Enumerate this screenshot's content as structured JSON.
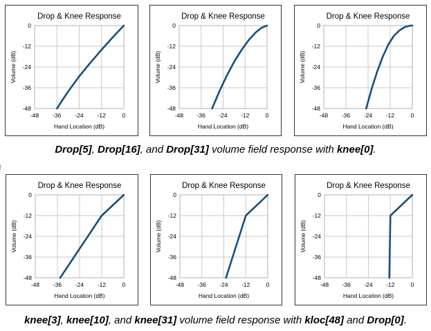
{
  "charts": [
    {
      "title": "Drop & Knee Response",
      "xlabel": "Hand Location (dB)",
      "ylabel": "Volume (dB)",
      "x_ticks": [
        "-48",
        "-36",
        "-24",
        "-12",
        "0"
      ],
      "y_ticks": [
        "0",
        "-12",
        "-24",
        "-36",
        "-48"
      ],
      "xlim": [
        -48,
        0
      ],
      "ylim": [
        -48,
        0
      ],
      "line_color": "#174f7c",
      "points": [
        [
          -36,
          -48
        ],
        [
          -30,
          -38.2
        ],
        [
          -24,
          -29.4
        ],
        [
          -18,
          -21.5
        ],
        [
          -12,
          -14
        ],
        [
          -6,
          -6.8
        ],
        [
          0,
          0
        ]
      ]
    },
    {
      "title": "Drop & Knee Response",
      "xlabel": "Hand Location (dB)",
      "ylabel": "Volume (dB)",
      "x_ticks": [
        "-48",
        "-36",
        "-24",
        "-12",
        "0"
      ],
      "y_ticks": [
        "0",
        "-12",
        "-24",
        "-36",
        "-48"
      ],
      "xlim": [
        -48,
        0
      ],
      "ylim": [
        -48,
        0
      ],
      "line_color": "#174f7c",
      "points": [
        [
          -30,
          -48
        ],
        [
          -26,
          -38
        ],
        [
          -22,
          -29
        ],
        [
          -18,
          -21
        ],
        [
          -14,
          -14.2
        ],
        [
          -10,
          -8.4
        ],
        [
          -6,
          -3.8
        ],
        [
          -3,
          -1.3
        ],
        [
          0,
          0
        ]
      ]
    },
    {
      "title": "Drop & Knee Response",
      "xlabel": "Hand Location (dB)",
      "ylabel": "Volume (dB)",
      "x_ticks": [
        "-48",
        "-36",
        "-24",
        "-12",
        "0"
      ],
      "y_ticks": [
        "0",
        "-12",
        "-24",
        "-36",
        "-48"
      ],
      "xlim": [
        -48,
        0
      ],
      "ylim": [
        -48,
        0
      ],
      "line_color": "#174f7c",
      "points": [
        [
          -25,
          -48
        ],
        [
          -22,
          -36.5
        ],
        [
          -19,
          -26.5
        ],
        [
          -16,
          -18
        ],
        [
          -13,
          -11
        ],
        [
          -10,
          -6
        ],
        [
          -7,
          -2.8
        ],
        [
          -4,
          -0.8
        ],
        [
          -1,
          0
        ],
        [
          0,
          0
        ]
      ]
    },
    {
      "title": "Drop & Knee Response",
      "xlabel": "Hand Location (dB)",
      "ylabel": "Volume (dB)",
      "x_ticks": [
        "-48",
        "-36",
        "-24",
        "-12",
        "0"
      ],
      "y_ticks": [
        "0",
        "-12",
        "-24",
        "-36",
        "-48"
      ],
      "xlim": [
        -48,
        0
      ],
      "ylim": [
        -48,
        0
      ],
      "line_color": "#174f7c",
      "points": [
        [
          -34.5,
          -48
        ],
        [
          -12,
          -12
        ],
        [
          0,
          0
        ]
      ]
    },
    {
      "title": "Drop & Knee Response",
      "xlabel": "Hand Location (dB)",
      "ylabel": "Volume (dB)",
      "x_ticks": [
        "-48",
        "-36",
        "-24",
        "-12",
        "0"
      ],
      "y_ticks": [
        "0",
        "-12",
        "-24",
        "-36",
        "-48"
      ],
      "xlim": [
        -48,
        0
      ],
      "ylim": [
        -48,
        0
      ],
      "line_color": "#174f7c",
      "points": [
        [
          -22.8,
          -48
        ],
        [
          -12,
          -12
        ],
        [
          0,
          0
        ]
      ]
    },
    {
      "title": "Drop & Knee Response",
      "xlabel": "Hand Location (dB)",
      "ylabel": "Volume (dB)",
      "x_ticks": [
        "-48",
        "-36",
        "-24",
        "-12",
        "0"
      ],
      "y_ticks": [
        "0",
        "-12",
        "-24",
        "-36",
        "-48"
      ],
      "xlim": [
        -48,
        0
      ],
      "ylim": [
        -48,
        0
      ],
      "line_color": "#174f7c",
      "points": [
        [
          -12.6,
          -48
        ],
        [
          -12,
          -12
        ],
        [
          0,
          0
        ]
      ]
    }
  ],
  "caption1": {
    "p1": "Drop[5]",
    "s1": ", ",
    "p2": "Drop[16]",
    "s2": ", and ",
    "p3": "Drop[31]",
    "s3": " volume field response with ",
    "p4": "knee[0]",
    "s4": "."
  },
  "caption2": {
    "p1": "knee[3]",
    "s1": ", ",
    "p2": "knee[10]",
    "s2": ", and ",
    "p3": "knee[31]",
    "s3": " volume field response with ",
    "p4": "kloc[48]",
    "s4": " and ",
    "p5": "Drop[0]",
    "s5": "."
  }
}
